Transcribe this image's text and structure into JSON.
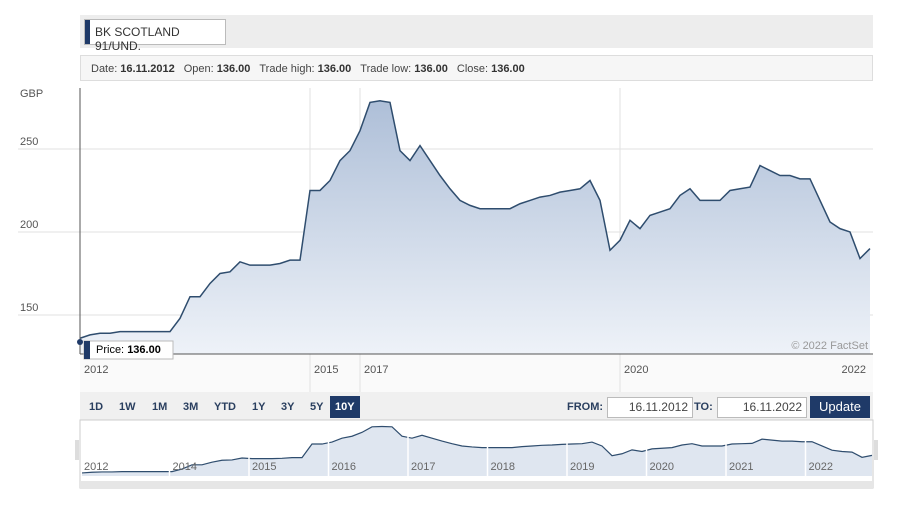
{
  "header": {
    "title": "BK SCOTLAND 91/UND."
  },
  "info": [
    {
      "label": "Date:",
      "value": "16.11.2012"
    },
    {
      "label": "Open:",
      "value": "136.00"
    },
    {
      "label": "Trade high:",
      "value": "136.00"
    },
    {
      "label": "Trade low:",
      "value": "136.00"
    },
    {
      "label": "Close:",
      "value": "136.00"
    }
  ],
  "chart_data": {
    "type": "area",
    "y_label": "GBP",
    "color": "#2f4d6e",
    "categories": [
      "2012",
      null,
      null,
      null,
      null,
      null,
      null,
      null,
      null,
      null,
      null,
      null,
      null,
      null,
      null,
      null,
      null,
      null,
      null,
      null,
      null,
      null,
      null,
      "2015",
      null,
      null,
      null,
      null,
      "2017",
      null,
      null,
      null,
      null,
      null,
      null,
      null,
      null,
      null,
      null,
      null,
      null,
      null,
      null,
      null,
      null,
      null,
      null,
      null,
      null,
      null,
      null,
      null,
      null,
      null,
      "2020",
      null,
      null,
      null,
      null,
      null,
      null,
      null,
      null,
      null,
      null,
      null,
      null,
      null,
      null,
      null,
      null,
      null,
      null,
      null,
      null,
      null,
      null,
      "2022",
      null,
      null
    ],
    "values": [
      136,
      138,
      139,
      139,
      140,
      140,
      140,
      140,
      140,
      140,
      148,
      161,
      161,
      169,
      175,
      176,
      182,
      180,
      180,
      180,
      181,
      183,
      183,
      225,
      225,
      231,
      243,
      249,
      261,
      278,
      279,
      278,
      249,
      243,
      252,
      243,
      234,
      226,
      219,
      216,
      214,
      214,
      214,
      214,
      217,
      219,
      221,
      222,
      224,
      225,
      226,
      231,
      219,
      189,
      195,
      207,
      202,
      210,
      212,
      214,
      222,
      226,
      219,
      219,
      219,
      225,
      226,
      227,
      240,
      237,
      234,
      234,
      232,
      232,
      219,
      206,
      202,
      200,
      184,
      190
    ],
    "ylim": [
      126.5,
      286.7
    ],
    "yticks": [
      150,
      200,
      250
    ],
    "grid": true
  },
  "tooltip": {
    "label": "Price:",
    "value": "136.00"
  },
  "copyright": "© 2022 FactSet",
  "controls": {
    "ranges": [
      "1D",
      "1W",
      "1M",
      "3M",
      "YTD",
      "1Y",
      "3Y",
      "5Y",
      "10Y"
    ],
    "active_index": 8,
    "from_label": "FROM:",
    "from": "16.11.2012",
    "to_label": "TO:",
    "to": "16.11.2022",
    "update": "Update"
  },
  "navigator": {
    "labels": [
      "2012",
      "2014",
      "2015",
      "2016",
      "2017",
      "2018",
      "2019",
      "2020",
      "2021",
      "2022"
    ]
  }
}
